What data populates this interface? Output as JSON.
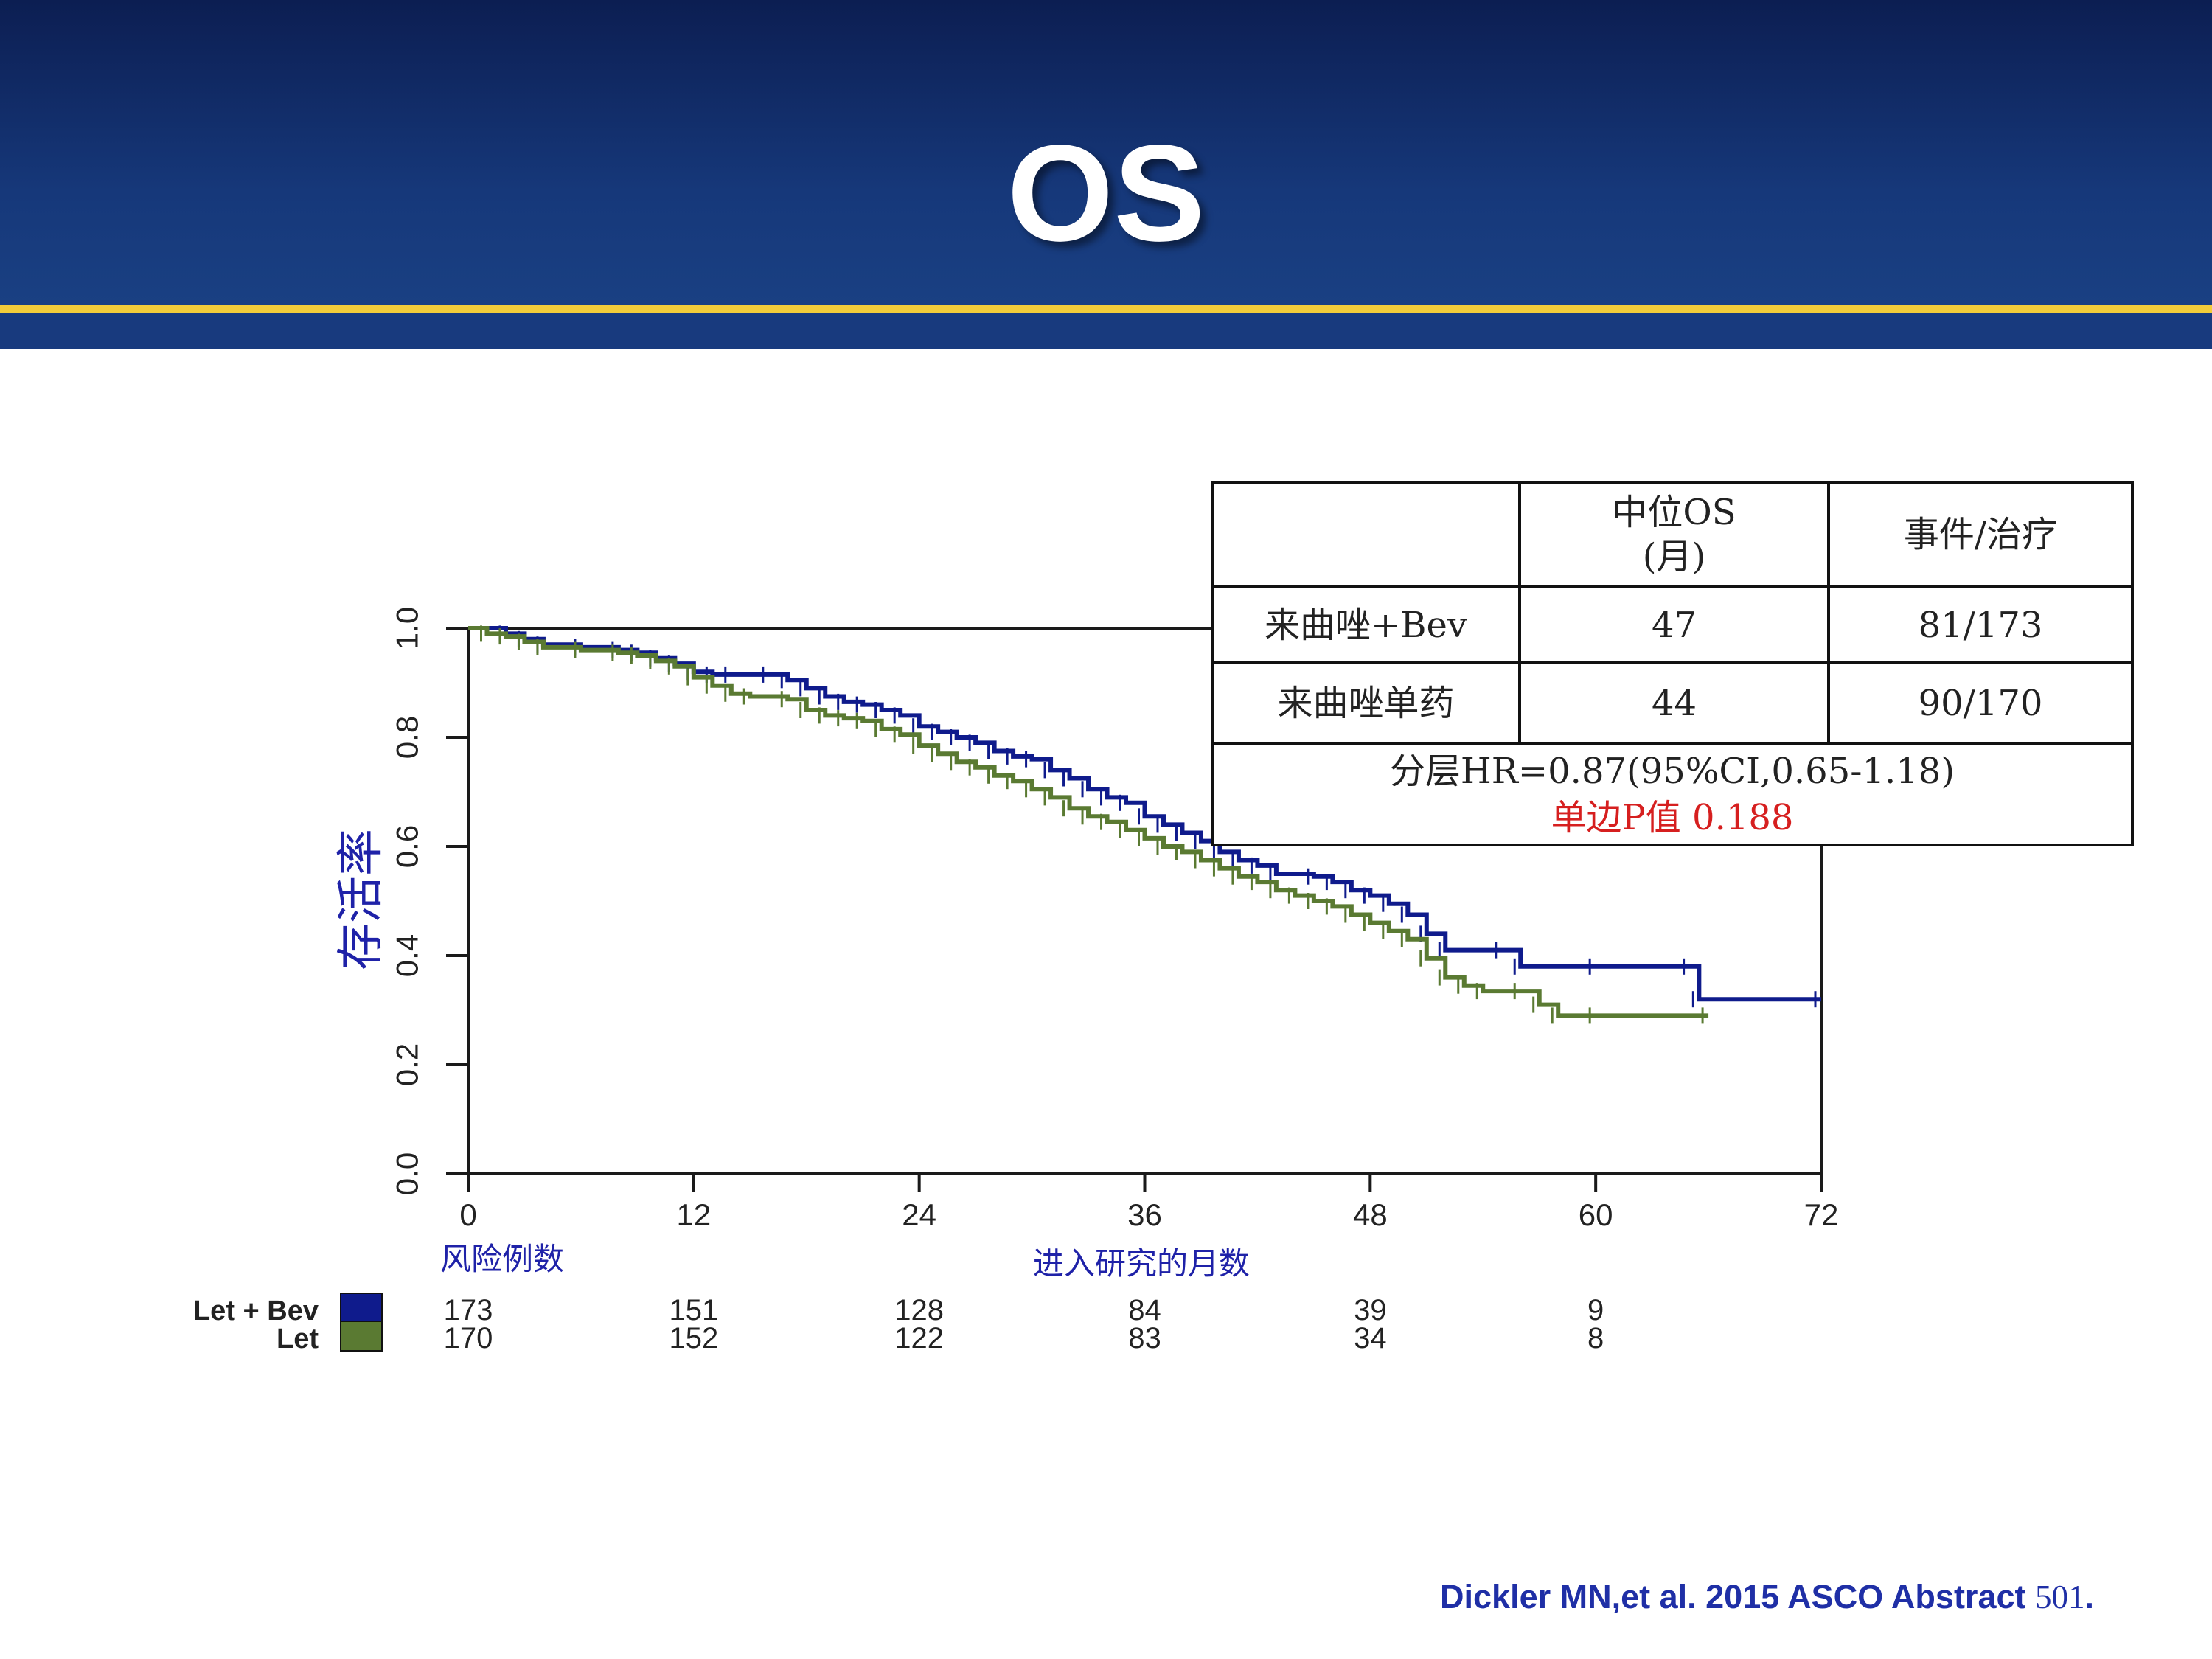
{
  "slide": {
    "title": "OS"
  },
  "chart_data": {
    "type": "line",
    "subtype": "kaplan-meier",
    "title": "OS",
    "ylabel": "存活率",
    "xlabel": "进入研究的月数",
    "ylim": [
      0,
      1
    ],
    "yticks": [
      "0.0",
      "0.2",
      "0.4",
      "0.6",
      "0.8",
      "1.0"
    ],
    "xlim": [
      0,
      72
    ],
    "xticks": [
      "0",
      "12",
      "24",
      "36",
      "48",
      "60",
      "72"
    ],
    "grid": false,
    "series": [
      {
        "name": "Let + Bev",
        "color": "#0f1b8c",
        "points": [
          [
            0,
            1.0
          ],
          [
            2,
            0.99
          ],
          [
            3,
            0.98
          ],
          [
            4,
            0.97
          ],
          [
            6,
            0.965
          ],
          [
            8,
            0.96
          ],
          [
            9,
            0.955
          ],
          [
            10,
            0.945
          ],
          [
            11,
            0.935
          ],
          [
            12,
            0.92
          ],
          [
            13,
            0.915
          ],
          [
            14,
            0.915
          ],
          [
            16,
            0.915
          ],
          [
            17,
            0.905
          ],
          [
            18,
            0.89
          ],
          [
            19,
            0.875
          ],
          [
            20,
            0.865
          ],
          [
            21,
            0.86
          ],
          [
            22,
            0.85
          ],
          [
            23,
            0.84
          ],
          [
            24,
            0.82
          ],
          [
            25,
            0.81
          ],
          [
            26,
            0.8
          ],
          [
            27,
            0.79
          ],
          [
            28,
            0.775
          ],
          [
            29,
            0.765
          ],
          [
            30,
            0.76
          ],
          [
            31,
            0.74
          ],
          [
            32,
            0.725
          ],
          [
            33,
            0.705
          ],
          [
            34,
            0.69
          ],
          [
            35,
            0.68
          ],
          [
            36,
            0.655
          ],
          [
            37,
            0.64
          ],
          [
            38,
            0.625
          ],
          [
            39,
            0.61
          ],
          [
            40,
            0.59
          ],
          [
            41,
            0.575
          ],
          [
            42,
            0.565
          ],
          [
            43,
            0.55
          ],
          [
            45,
            0.545
          ],
          [
            46,
            0.535
          ],
          [
            47,
            0.52
          ],
          [
            48,
            0.51
          ],
          [
            49,
            0.495
          ],
          [
            50,
            0.475
          ],
          [
            51,
            0.44
          ],
          [
            52,
            0.41
          ],
          [
            55,
            0.41
          ],
          [
            56,
            0.38
          ],
          [
            60,
            0.38
          ],
          [
            65,
            0.38
          ],
          [
            65.5,
            0.32
          ],
          [
            72,
            0.32
          ]
        ],
        "at_risk": [
          173,
          151,
          128,
          84,
          39,
          9
        ]
      },
      {
        "name": "Let",
        "color": "#5a7a32",
        "points": [
          [
            0,
            1.0
          ],
          [
            1,
            0.99
          ],
          [
            2,
            0.985
          ],
          [
            3,
            0.975
          ],
          [
            4,
            0.965
          ],
          [
            6,
            0.96
          ],
          [
            8,
            0.955
          ],
          [
            9,
            0.95
          ],
          [
            10,
            0.94
          ],
          [
            11,
            0.93
          ],
          [
            12,
            0.91
          ],
          [
            13,
            0.895
          ],
          [
            14,
            0.88
          ],
          [
            15,
            0.875
          ],
          [
            17,
            0.87
          ],
          [
            18,
            0.85
          ],
          [
            19,
            0.84
          ],
          [
            20,
            0.835
          ],
          [
            21,
            0.83
          ],
          [
            22,
            0.815
          ],
          [
            23,
            0.805
          ],
          [
            24,
            0.785
          ],
          [
            25,
            0.77
          ],
          [
            26,
            0.755
          ],
          [
            27,
            0.745
          ],
          [
            28,
            0.73
          ],
          [
            29,
            0.72
          ],
          [
            30,
            0.705
          ],
          [
            31,
            0.69
          ],
          [
            32,
            0.67
          ],
          [
            33,
            0.655
          ],
          [
            34,
            0.645
          ],
          [
            35,
            0.63
          ],
          [
            36,
            0.615
          ],
          [
            37,
            0.6
          ],
          [
            38,
            0.59
          ],
          [
            39,
            0.575
          ],
          [
            40,
            0.56
          ],
          [
            41,
            0.545
          ],
          [
            42,
            0.535
          ],
          [
            43,
            0.52
          ],
          [
            44,
            0.51
          ],
          [
            45,
            0.5
          ],
          [
            46,
            0.49
          ],
          [
            47,
            0.475
          ],
          [
            48,
            0.46
          ],
          [
            49,
            0.445
          ],
          [
            50,
            0.43
          ],
          [
            51,
            0.395
          ],
          [
            52,
            0.36
          ],
          [
            53,
            0.345
          ],
          [
            54,
            0.335
          ],
          [
            56,
            0.335
          ],
          [
            57,
            0.31
          ],
          [
            58,
            0.29
          ],
          [
            60,
            0.29
          ],
          [
            66,
            0.29
          ]
        ],
        "at_risk": [
          170,
          152,
          122,
          83,
          34,
          8
        ]
      }
    ],
    "at_risk_label": "风险例数",
    "at_risk_times": [
      0,
      12,
      24,
      36,
      48,
      60
    ],
    "legend": [
      "Let + Bev",
      "Let"
    ],
    "legend_position": "bottom-left"
  },
  "stats_table": {
    "header": [
      "",
      "中位OS\n(月)",
      "事件/治疗"
    ],
    "rows": [
      [
        "来曲唑+Bev",
        "47",
        "81/173"
      ],
      [
        "来曲唑单药",
        "44",
        "90/170"
      ]
    ],
    "hr": "分层HR=0.87(95%CI,0.65-1.18)",
    "p_value": "单边P值 0.188"
  },
  "citation": {
    "text": "Dickler MN,et al. 2015 ASCO Abstract ",
    "number": "501",
    "suffix": "."
  }
}
